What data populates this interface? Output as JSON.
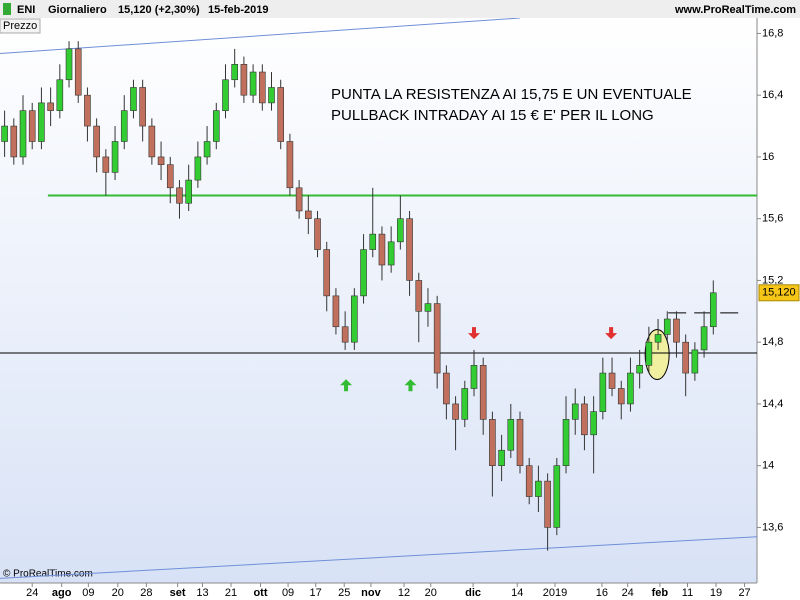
{
  "header": {
    "symbol": "ENI",
    "period": "Giornaliero",
    "quote": "15,120 (+2,30%)",
    "date": "15-feb-2019",
    "site": "www.ProRealTime.com"
  },
  "chart_data": {
    "type": "candlestick",
    "panel_label": "Prezzo",
    "annotation": [
      "PUNTA LA RESISTENZA AI 15,75 E UN EVENTUALE",
      "PULLBACK INTRADAY AI 15 € E' PER IL LONG"
    ],
    "copyright": "© ProRealTime.com",
    "last_label": "15,120",
    "last_value": 15.12,
    "last_color": "#f5c518",
    "up_color": "#33cc33",
    "down_color": "#c0705c",
    "open": [
      16.1,
      16.2,
      16.0,
      16.3,
      16.1,
      16.35,
      16.3,
      16.5,
      16.7,
      16.4,
      16.2,
      16.0,
      15.9,
      16.1,
      16.3,
      16.45,
      16.2,
      16.0,
      15.95,
      15.8,
      15.7,
      15.85,
      16.0,
      16.1,
      16.3,
      16.5,
      16.6,
      16.4,
      16.55,
      16.35,
      16.45,
      16.1,
      15.8,
      15.65,
      15.6,
      15.4,
      15.1,
      14.9,
      14.8,
      15.1,
      15.4,
      15.5,
      15.3,
      15.45,
      15.6,
      15.2,
      15.0,
      15.05,
      14.6,
      14.4,
      14.3,
      14.5,
      14.65,
      14.3,
      14.0,
      14.1,
      14.3,
      14.0,
      13.8,
      13.9,
      13.6,
      14.0,
      14.3,
      14.4,
      14.2,
      14.35,
      14.6,
      14.5,
      14.4,
      14.6,
      14.65,
      14.8,
      14.85,
      14.95,
      14.8,
      14.6,
      14.75,
      14.9
    ],
    "high": [
      16.3,
      16.25,
      16.4,
      16.35,
      16.45,
      16.45,
      16.6,
      16.75,
      16.75,
      16.45,
      16.25,
      16.05,
      16.2,
      16.4,
      16.5,
      16.5,
      16.25,
      16.1,
      16.0,
      15.85,
      15.95,
      16.1,
      16.2,
      16.35,
      16.6,
      16.7,
      16.65,
      16.6,
      16.6,
      16.55,
      16.5,
      16.15,
      15.85,
      15.75,
      15.65,
      15.45,
      15.15,
      15.0,
      15.15,
      15.5,
      15.8,
      15.55,
      15.55,
      15.75,
      15.65,
      15.25,
      15.15,
      15.1,
      14.65,
      14.45,
      14.55,
      14.75,
      14.7,
      14.35,
      14.2,
      14.4,
      14.35,
      14.05,
      14.0,
      13.95,
      14.05,
      14.45,
      14.5,
      14.45,
      14.45,
      14.7,
      14.7,
      14.55,
      14.7,
      14.75,
      14.9,
      14.95,
      15.0,
      15.0,
      14.85,
      14.8,
      15.0,
      15.2
    ],
    "low": [
      16.0,
      15.95,
      15.95,
      16.05,
      16.05,
      16.2,
      16.25,
      16.45,
      16.35,
      16.1,
      15.9,
      15.75,
      15.85,
      16.05,
      16.25,
      16.1,
      15.95,
      15.85,
      15.7,
      15.6,
      15.65,
      15.8,
      15.95,
      16.05,
      16.25,
      16.45,
      16.35,
      16.35,
      16.3,
      16.3,
      16.05,
      15.75,
      15.6,
      15.5,
      15.35,
      15.0,
      14.85,
      14.75,
      14.75,
      15.05,
      15.35,
      15.2,
      15.25,
      15.4,
      15.1,
      14.8,
      14.9,
      14.5,
      14.3,
      14.1,
      14.25,
      14.45,
      14.2,
      13.8,
      13.9,
      14.05,
      13.95,
      13.75,
      13.7,
      13.45,
      13.55,
      13.95,
      14.2,
      14.1,
      13.95,
      14.3,
      14.45,
      14.3,
      14.35,
      14.5,
      14.6,
      14.75,
      14.8,
      14.7,
      14.45,
      14.55,
      14.7,
      14.85
    ],
    "close": [
      16.2,
      16.0,
      16.3,
      16.1,
      16.35,
      16.3,
      16.5,
      16.7,
      16.4,
      16.2,
      16.0,
      15.9,
      16.1,
      16.3,
      16.45,
      16.2,
      16.0,
      15.95,
      15.8,
      15.7,
      15.85,
      16.0,
      16.1,
      16.3,
      16.5,
      16.6,
      16.4,
      16.55,
      16.35,
      16.45,
      16.1,
      15.8,
      15.65,
      15.6,
      15.4,
      15.1,
      14.9,
      14.8,
      15.1,
      15.4,
      15.5,
      15.3,
      15.45,
      15.6,
      15.2,
      15.0,
      15.05,
      14.6,
      14.4,
      14.3,
      14.5,
      14.65,
      14.3,
      14.0,
      14.1,
      14.3,
      14.0,
      13.8,
      13.9,
      13.6,
      14.0,
      14.3,
      14.4,
      14.2,
      14.35,
      14.6,
      14.5,
      14.4,
      14.6,
      14.65,
      14.8,
      14.85,
      14.95,
      14.8,
      14.6,
      14.75,
      14.9,
      15.12
    ],
    "xlim": [
      -0.5,
      81.75
    ],
    "xticks": [
      {
        "value": 3.0,
        "label": "24"
      },
      {
        "value": 6.2,
        "label": "ago"
      },
      {
        "value": 9.1,
        "label": "09"
      },
      {
        "value": 12.3,
        "label": "20"
      },
      {
        "value": 15.4,
        "label": "28"
      },
      {
        "value": 18.8,
        "label": "set"
      },
      {
        "value": 21.5,
        "label": "13"
      },
      {
        "value": 24.6,
        "label": "21"
      },
      {
        "value": 27.8,
        "label": "ott"
      },
      {
        "value": 30.8,
        "label": "09"
      },
      {
        "value": 33.8,
        "label": "17"
      },
      {
        "value": 36.9,
        "label": "25"
      },
      {
        "value": 39.8,
        "label": "nov"
      },
      {
        "value": 43.4,
        "label": "12"
      },
      {
        "value": 46.3,
        "label": "20"
      },
      {
        "value": 50.9,
        "label": "dic"
      },
      {
        "value": 55.7,
        "label": "14"
      },
      {
        "value": 59.8,
        "label": "2019"
      },
      {
        "value": 64.9,
        "label": "16"
      },
      {
        "value": 67.7,
        "label": "24"
      },
      {
        "value": 71.2,
        "label": "feb"
      },
      {
        "value": 74.2,
        "label": "11"
      },
      {
        "value": 77.3,
        "label": "19"
      },
      {
        "value": 80.4,
        "label": "27"
      }
    ],
    "ylim": [
      13.24,
      16.9
    ],
    "yticks": [
      {
        "value": 16.8,
        "label": "16,8"
      },
      {
        "value": 16.4,
        "label": "16,4"
      },
      16,
      {
        "value": 15.6,
        "label": "15,6"
      },
      {
        "value": 15.2,
        "label": "15,2"
      },
      {
        "value": 14.8,
        "label": "14,8"
      },
      {
        "value": 14.4,
        "label": "14,4"
      },
      14,
      {
        "value": 13.6,
        "label": "13,6"
      }
    ],
    "lines": [
      {
        "color": "#6f8fd8",
        "x": [
          -0.5,
          56.0
        ],
        "y": [
          16.67,
          16.9
        ]
      },
      {
        "color": "#6f8fd8",
        "x": [
          -0.5,
          81.75
        ],
        "y": [
          13.27,
          13.54
        ]
      },
      {
        "color": "#33bb33",
        "x": [
          4.7,
          81.75
        ],
        "y": [
          15.75,
          15.75
        ]
      },
      {
        "color": "#000000",
        "x": [
          -0.5,
          81.75
        ],
        "y": [
          14.73,
          14.73
        ]
      },
      {
        "color": "#000000",
        "dash": true,
        "x": [
          72.1,
          80.5
        ],
        "y": [
          14.99,
          14.99
        ]
      }
    ],
    "markers": [
      {
        "x": 37.1,
        "y": 14.56,
        "direction": "up",
        "color": "#33bb33"
      },
      {
        "x": 44.1,
        "y": 14.56,
        "direction": "up",
        "color": "#33bb33"
      },
      {
        "x": 51.0,
        "y": 14.82,
        "direction": "down",
        "color": "#e03030"
      },
      {
        "x": 65.9,
        "y": 14.82,
        "direction": "down",
        "color": "#e03030"
      }
    ],
    "highlight": {
      "x": 70.9,
      "y": 14.72,
      "color": "#f0f0a0"
    }
  }
}
